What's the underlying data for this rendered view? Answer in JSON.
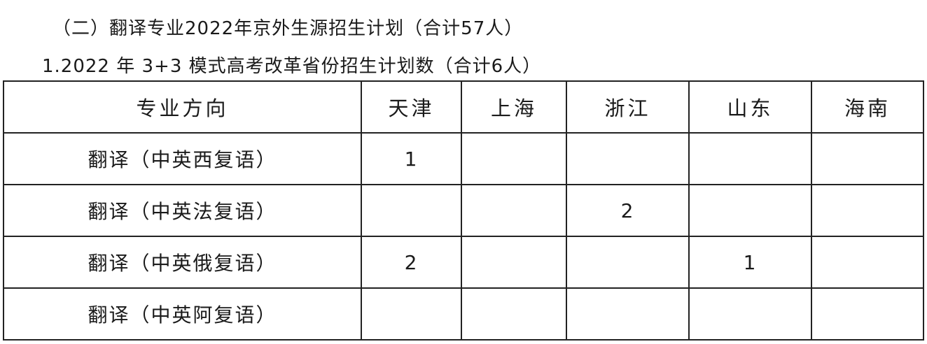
{
  "heading": "（二）翻译专业2022年京外生源招生计划（合计57人）",
  "subheading": "1.2022 年 3+3 模式高考改革省份招生计划数（合计6人）",
  "table": {
    "headers": [
      "专业方向",
      "天津",
      "上海",
      "浙江",
      "山东",
      "海南"
    ],
    "rows": [
      [
        "翻译（中英西复语）",
        "1",
        "",
        "",
        "",
        ""
      ],
      [
        "翻译（中英法复语）",
        "",
        "",
        "2",
        "",
        ""
      ],
      [
        "翻译（中英俄复语）",
        "2",
        "",
        "",
        "1",
        ""
      ],
      [
        "翻译（中英阿复语）",
        "",
        "",
        "",
        "",
        ""
      ]
    ]
  }
}
